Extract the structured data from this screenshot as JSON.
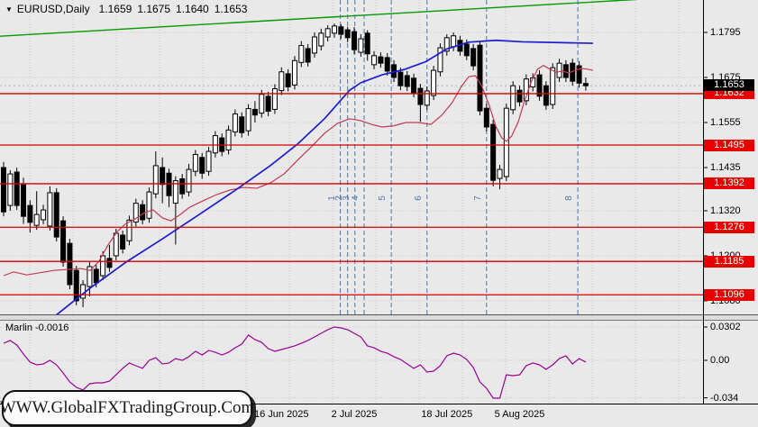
{
  "header": {
    "symbol_period": "EURUSD,Daily",
    "open": "1.1659",
    "high": "1.1675",
    "low": "1.1640",
    "close": "1.1653"
  },
  "indicator_header": {
    "name": "Marlin",
    "value": "-0.0016"
  },
  "watermark": {
    "text": "WWW.GlobalFXTradingGroup.Com"
  },
  "colors": {
    "background": "#e9e9e9",
    "grid": "#c9c9c9",
    "hline_red": "#d40000",
    "badge_red": "#e80000",
    "badge_black": "#000000",
    "ma_blue": "#1c1ccd",
    "ma_red": "#c43a55",
    "trend_green": "#009a00",
    "wave_blue": "#4f74ad",
    "marlin_purple": "#990099",
    "candle_up": "#ffffff",
    "candle_down": "#000000",
    "close_line": "#a9b6c9",
    "axis_border": "#000000"
  },
  "chart_data": {
    "type": "candlestick",
    "title": "EURUSD,Daily 1.1659 1.1675 1.1640 1.1653",
    "symbol": "EURUSD",
    "timeframe": "Daily",
    "price_axis_ticks": [
      1.1795,
      1.1675,
      1.1555,
      1.1435,
      1.132,
      1.12,
      1.108
    ],
    "hlines": [
      {
        "price": 1.1632,
        "label": "1.1632"
      },
      {
        "price": 1.1495,
        "label": "1.1495"
      },
      {
        "price": 1.1392,
        "label": "1.1392"
      },
      {
        "price": 1.1276,
        "label": "1.1276"
      },
      {
        "price": 1.1185,
        "label": "1.1185"
      },
      {
        "price": 1.1096,
        "label": "1.1096"
      }
    ],
    "close_badge": {
      "price": 1.1653,
      "label": "1.1653"
    },
    "date_labels": [
      {
        "label": "16 Jun 2025",
        "bar": 42
      },
      {
        "label": "2 Jul 2025",
        "bar": 53
      },
      {
        "label": "18 Jul 2025",
        "bar": 67
      },
      {
        "label": "5 Aug 2025",
        "bar": 78
      }
    ],
    "wave_marks": [
      {
        "label": "1",
        "bar": 50.9
      },
      {
        "label": "2",
        "bar": 52.0
      },
      {
        "label": "3",
        "bar": 53.1
      },
      {
        "label": "4",
        "bar": 54.5
      },
      {
        "label": "5",
        "bar": 58.6
      },
      {
        "label": "6",
        "bar": 64.0
      },
      {
        "label": "7",
        "bar": 73.0
      },
      {
        "label": "8",
        "bar": 86.8
      }
    ],
    "trendline_green": {
      "price_left": 1.1785,
      "price_right": 1.1893
    },
    "candles": [
      [
        1.1435,
        1.145,
        1.1305,
        1.1317
      ],
      [
        1.1334,
        1.1428,
        1.132,
        1.1418
      ],
      [
        1.1423,
        1.1435,
        1.1322,
        1.1334
      ],
      [
        1.1389,
        1.1408,
        1.1285,
        1.1305
      ],
      [
        1.1334,
        1.1348,
        1.1262,
        1.1289
      ],
      [
        1.1281,
        1.1372,
        1.1269,
        1.131
      ],
      [
        1.1296,
        1.1336,
        1.1284,
        1.1322
      ],
      [
        1.1279,
        1.1385,
        1.1267,
        1.1368
      ],
      [
        1.1368,
        1.138,
        1.1238,
        1.125
      ],
      [
        1.1293,
        1.1305,
        1.1171,
        1.1183
      ],
      [
        1.1233,
        1.1245,
        1.1111,
        1.1123
      ],
      [
        1.1161,
        1.1173,
        1.1068,
        1.108
      ],
      [
        1.1087,
        1.1135,
        1.1063,
        1.1123
      ],
      [
        1.1118,
        1.1183,
        1.1092,
        1.1171
      ],
      [
        1.1164,
        1.1176,
        1.1116,
        1.1128
      ],
      [
        1.1147,
        1.1212,
        1.1135,
        1.12
      ],
      [
        1.1193,
        1.1229,
        1.1157,
        1.1169
      ],
      [
        1.12,
        1.1272,
        1.1188,
        1.126
      ],
      [
        1.1255,
        1.1267,
        1.1206,
        1.1218
      ],
      [
        1.124,
        1.1307,
        1.1228,
        1.1295
      ],
      [
        1.129,
        1.1352,
        1.1278,
        1.134
      ],
      [
        1.1336,
        1.1348,
        1.1284,
        1.1296
      ],
      [
        1.13,
        1.1382,
        1.1288,
        1.137
      ],
      [
        1.1365,
        1.1478,
        1.1353,
        1.144
      ],
      [
        1.1435,
        1.1462,
        1.134,
        1.139
      ],
      [
        1.142,
        1.1432,
        1.133,
        1.136
      ],
      [
        1.134,
        1.1412,
        1.123,
        1.14
      ],
      [
        1.1405,
        1.1418,
        1.1352,
        1.1365
      ],
      [
        1.137,
        1.1445,
        1.1358,
        1.143
      ],
      [
        1.1425,
        1.1482,
        1.1412,
        1.147
      ],
      [
        1.1462,
        1.1474,
        1.1405,
        1.142
      ],
      [
        1.1425,
        1.149,
        1.1413,
        1.1478
      ],
      [
        1.1474,
        1.1532,
        1.1462,
        1.152
      ],
      [
        1.1514,
        1.1526,
        1.1465,
        1.1478
      ],
      [
        1.1482,
        1.1547,
        1.147,
        1.1535
      ],
      [
        1.153,
        1.159,
        1.1518,
        1.1578
      ],
      [
        1.157,
        1.1582,
        1.1515,
        1.1528
      ],
      [
        1.1533,
        1.1604,
        1.152,
        1.1592
      ],
      [
        1.159,
        1.1612,
        1.1555,
        1.1575
      ],
      [
        1.158,
        1.1642,
        1.1568,
        1.163
      ],
      [
        1.1625,
        1.1637,
        1.1572,
        1.1585
      ],
      [
        1.159,
        1.1657,
        1.1578,
        1.1645
      ],
      [
        1.164,
        1.1702,
        1.1628,
        1.169
      ],
      [
        1.1685,
        1.1697,
        1.1638,
        1.165
      ],
      [
        1.1655,
        1.1732,
        1.1643,
        1.172
      ],
      [
        1.1715,
        1.1772,
        1.1703,
        1.176
      ],
      [
        1.1752,
        1.1764,
        1.1704,
        1.1716
      ],
      [
        1.174,
        1.1795,
        1.1728,
        1.1783
      ],
      [
        1.1759,
        1.1805,
        1.1747,
        1.1793
      ],
      [
        1.1783,
        1.1814,
        1.1771,
        1.1805
      ],
      [
        1.1793,
        1.1819,
        1.1781,
        1.1812
      ],
      [
        1.181,
        1.1817,
        1.1778,
        1.179
      ],
      [
        1.1802,
        1.181,
        1.1769,
        1.1781
      ],
      [
        1.1797,
        1.1809,
        1.1737,
        1.1749
      ],
      [
        1.1742,
        1.179,
        1.173,
        1.1778
      ],
      [
        1.1793,
        1.1801,
        1.172,
        1.1738
      ],
      [
        1.1709,
        1.1745,
        1.1697,
        1.1733
      ],
      [
        1.173,
        1.1742,
        1.1701,
        1.1713
      ],
      [
        1.1728,
        1.174,
        1.168,
        1.1692
      ],
      [
        1.1709,
        1.1721,
        1.1663,
        1.1675
      ],
      [
        1.1689,
        1.1701,
        1.1641,
        1.1653
      ],
      [
        1.168,
        1.1692,
        1.1639,
        1.1651
      ],
      [
        1.1673,
        1.1685,
        1.1622,
        1.1634
      ],
      [
        1.1646,
        1.1658,
        1.1557,
        1.1603
      ],
      [
        1.1601,
        1.1651,
        1.1589,
        1.1639
      ],
      [
        1.1627,
        1.1706,
        1.1615,
        1.1694
      ],
      [
        1.169,
        1.1766,
        1.1678,
        1.1754
      ],
      [
        1.1745,
        1.179,
        1.1733,
        1.1781
      ],
      [
        1.1757,
        1.1795,
        1.1745,
        1.1786
      ],
      [
        1.1774,
        1.1786,
        1.1733,
        1.1745
      ],
      [
        1.1764,
        1.1776,
        1.1721,
        1.1733
      ],
      [
        1.1752,
        1.1764,
        1.1694,
        1.1706
      ],
      [
        1.1761,
        1.1773,
        1.1574,
        1.1586
      ],
      [
        1.1593,
        1.1605,
        1.1531,
        1.1543
      ],
      [
        1.155,
        1.1562,
        1.1385,
        1.1401
      ],
      [
        1.1406,
        1.1442,
        1.1377,
        1.143
      ],
      [
        1.1411,
        1.1605,
        1.1399,
        1.1593
      ],
      [
        1.1589,
        1.1665,
        1.1577,
        1.1653
      ],
      [
        1.1641,
        1.1653,
        1.1598,
        1.161
      ],
      [
        1.1613,
        1.1683,
        1.1601,
        1.1671
      ],
      [
        1.165,
        1.1686,
        1.1638,
        1.1674
      ],
      [
        1.1682,
        1.1694,
        1.1613,
        1.1625
      ],
      [
        1.1653,
        1.1665,
        1.1589,
        1.1601
      ],
      [
        1.1603,
        1.1713,
        1.1591,
        1.1701
      ],
      [
        1.1675,
        1.1725,
        1.1663,
        1.1713
      ],
      [
        1.1709,
        1.1721,
        1.1663,
        1.1675
      ],
      [
        1.1713,
        1.1725,
        1.1653,
        1.1665
      ],
      [
        1.1706,
        1.1718,
        1.1648,
        1.166
      ],
      [
        1.1659,
        1.1675,
        1.164,
        1.1653
      ]
    ],
    "ma_blue": [
      [
        7.6,
        1.1037
      ],
      [
        13,
        1.1113
      ],
      [
        18.5,
        1.1183
      ],
      [
        24,
        1.1245
      ],
      [
        29.4,
        1.1308
      ],
      [
        34.9,
        1.1373
      ],
      [
        40.3,
        1.144
      ],
      [
        44.4,
        1.1497
      ],
      [
        48.5,
        1.1565
      ],
      [
        52.3,
        1.1641
      ],
      [
        54,
        1.1661
      ],
      [
        57.2,
        1.1682
      ],
      [
        60.5,
        1.1696
      ],
      [
        63.8,
        1.1717
      ],
      [
        67,
        1.1751
      ],
      [
        70.3,
        1.1769
      ],
      [
        74.4,
        1.1774
      ],
      [
        78.5,
        1.177
      ],
      [
        83.9,
        1.1768
      ],
      [
        89.1,
        1.1766
      ]
    ],
    "ma_red": [
      [
        0,
        1.1147
      ],
      [
        1.5,
        1.1157
      ],
      [
        3.5,
        1.1149
      ],
      [
        7.6,
        1.1161
      ],
      [
        11.7,
        1.1166
      ],
      [
        13.1,
        1.1161
      ],
      [
        14.4,
        1.1185
      ],
      [
        15.8,
        1.1229
      ],
      [
        17.2,
        1.1265
      ],
      [
        18.5,
        1.1286
      ],
      [
        19.9,
        1.1298
      ],
      [
        21.3,
        1.1315
      ],
      [
        22.6,
        1.1322
      ],
      [
        24,
        1.1301
      ],
      [
        25.3,
        1.1293
      ],
      [
        26.7,
        1.131
      ],
      [
        28.1,
        1.1329
      ],
      [
        30.1,
        1.1346
      ],
      [
        32.2,
        1.1363
      ],
      [
        34.2,
        1.1375
      ],
      [
        36.2,
        1.1382
      ],
      [
        38.3,
        1.138
      ],
      [
        40.3,
        1.1394
      ],
      [
        42.4,
        1.1418
      ],
      [
        44.4,
        1.1454
      ],
      [
        46.5,
        1.149
      ],
      [
        48.5,
        1.1526
      ],
      [
        50.5,
        1.1553
      ],
      [
        52.3,
        1.1565
      ],
      [
        54,
        1.156
      ],
      [
        55.6,
        1.155
      ],
      [
        57.2,
        1.1543
      ],
      [
        58.9,
        1.1546
      ],
      [
        60.8,
        1.1555
      ],
      [
        62.7,
        1.1555
      ],
      [
        64.6,
        1.155
      ],
      [
        66.2,
        1.1574
      ],
      [
        67.8,
        1.1608
      ],
      [
        69.2,
        1.1651
      ],
      [
        70.3,
        1.1677
      ],
      [
        71.3,
        1.168
      ],
      [
        72.3,
        1.1651
      ],
      [
        73.4,
        1.1601
      ],
      [
        74.4,
        1.1545
      ],
      [
        75.3,
        1.1514
      ],
      [
        76,
        1.1505
      ],
      [
        76.8,
        1.1519
      ],
      [
        77.8,
        1.1557
      ],
      [
        78.7,
        1.161
      ],
      [
        79.7,
        1.1661
      ],
      [
        80.7,
        1.1697
      ],
      [
        81.6,
        1.1707
      ],
      [
        82.6,
        1.1697
      ],
      [
        83.5,
        1.1689
      ],
      [
        84.5,
        1.1692
      ],
      [
        85.4,
        1.1687
      ],
      [
        86.4,
        1.1694
      ],
      [
        87.3,
        1.1699
      ],
      [
        88.3,
        1.1697
      ],
      [
        89.1,
        1.1694
      ]
    ],
    "indicator": {
      "name": "Marlin",
      "last_value": -0.0016,
      "ticks": [
        {
          "v": 0.0302,
          "label": "0.0302"
        },
        {
          "v": 0,
          "label": "0.00"
        },
        {
          "v": -0.034,
          "label": "-0.034"
        }
      ],
      "values": [
        0.0155,
        0.018,
        0.0139,
        0.0057,
        -0.0016,
        -0.0041,
        -0.0033,
        0.0,
        -0.0041,
        -0.0114,
        -0.0196,
        -0.0245,
        -0.0269,
        -0.0212,
        -0.0204,
        -0.0204,
        -0.0188,
        -0.0131,
        -0.0073,
        -0.0024,
        -0.0049,
        -0.0073,
        0.0,
        0.0024,
        -0.0033,
        -0.0024,
        0.0016,
        0.0,
        0.0033,
        0.0082,
        0.0049,
        0.009,
        0.0073,
        0.0049,
        0.0073,
        0.0114,
        0.0147,
        0.0229,
        0.0188,
        0.0163,
        0.0106,
        0.0082,
        0.0098,
        0.0114,
        0.0131,
        0.0155,
        0.018,
        0.0212,
        0.0245,
        0.0278,
        0.0302,
        0.0294,
        0.0278,
        0.0245,
        0.0212,
        0.0131,
        0.0114,
        0.0082,
        0.0065,
        0.0033,
        0.0008,
        -0.0033,
        -0.0073,
        -0.0041,
        -0.0106,
        -0.0098,
        -0.0049,
        0.0041,
        0.0065,
        0.0049,
        0.0008,
        -0.0065,
        -0.0196,
        -0.0253,
        -0.0343,
        -0.0343,
        -0.0131,
        -0.0139,
        -0.0131,
        -0.0049,
        -0.0024,
        -0.0041,
        -0.0082,
        -0.0041,
        0.0016,
        0.0041,
        -0.0033,
        0.0016,
        -0.0016
      ]
    }
  }
}
